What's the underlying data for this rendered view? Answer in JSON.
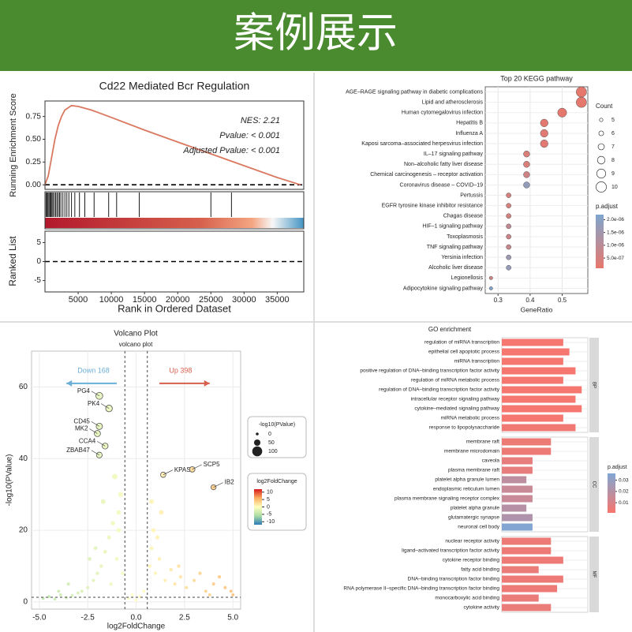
{
  "header": {
    "title": "案例展示"
  },
  "chart_data": [
    {
      "type": "line",
      "title": "Cd22 Mediated Bcr Regulation",
      "ylabel": "Running Enrichment Score",
      "xlabel": "Rank in Ordered Dataset",
      "annotations": [
        "NES: 2.21",
        "Pvalue: < 0.001",
        "Adjusted Pvalue: < 0.001"
      ],
      "x": [
        0,
        500,
        1000,
        1500,
        2000,
        2500,
        3000,
        4000,
        5000,
        7000,
        10000,
        15000,
        20000,
        25000,
        30000,
        35000,
        38500
      ],
      "y": [
        0,
        0.1,
        0.3,
        0.5,
        0.65,
        0.75,
        0.82,
        0.87,
        0.86,
        0.82,
        0.74,
        0.6,
        0.47,
        0.34,
        0.21,
        0.08,
        0
      ],
      "color": "#d9785f",
      "xlim": [
        0,
        39000
      ],
      "xticks": [
        5000,
        10000,
        15000,
        20000,
        25000,
        30000,
        35000
      ],
      "ylim": [
        -0.05,
        0.92
      ],
      "yticks": [
        {
          "value": 0,
          "label": "0.00"
        },
        0.25,
        {
          "value": 0.5,
          "label": "0.50"
        },
        0.75
      ],
      "hits": [
        150,
        300,
        450,
        600,
        750,
        900,
        1050,
        1200,
        1400,
        1600,
        1800,
        2000,
        2200,
        2400,
        2700,
        3000,
        3300,
        3600,
        4000,
        4500,
        5200,
        6000,
        7400,
        9600,
        10800,
        14200,
        25000,
        28100
      ],
      "ranked_ylabel": "Ranked List",
      "ranked_ylim": [
        -8,
        8
      ],
      "ranked_yticks": [
        5,
        0,
        -5
      ]
    },
    {
      "type": "scatter",
      "title": "Top 20 KEGG pathway",
      "xlabel": "GeneRatio",
      "categories": [
        "AGE–RAGE signaling pathway in diabetic complications",
        "Lipid and atherosclerosis",
        "Human cytomegalovirus infection",
        "Hepatitis B",
        "Influenza A",
        "Kaposi sarcoma–associated herpesvirus infection",
        "IL–17 signaling pathway",
        "Non–alcoholic fatty liver disease",
        "Chemical carcinogenesis – receptor activation",
        "Coronavirus disease – COVID–19",
        "Pertussis",
        "EGFR tyrosine kinase inhibitor resistance",
        "Chagas disease",
        "HIF–1 signaling pathway",
        "Toxoplasmosis",
        "TNF signaling pathway",
        "Yersinia infection",
        "Alcoholic liver disease",
        "Legionellosis",
        "Adipocytokine signaling pathway"
      ],
      "gene_ratio": [
        0.56,
        0.56,
        0.5,
        0.444,
        0.444,
        0.444,
        0.389,
        0.389,
        0.389,
        0.389,
        0.333,
        0.333,
        0.333,
        0.333,
        0.333,
        0.333,
        0.333,
        0.333,
        0.278,
        0.278
      ],
      "count": [
        10,
        10,
        9,
        8,
        8,
        8,
        7,
        7,
        7,
        7,
        6,
        6,
        6,
        6,
        6,
        6,
        6,
        6,
        5,
        5
      ],
      "p_adjust": [
        1.5e-07,
        1.5e-07,
        1.6e-07,
        2e-07,
        2.5e-07,
        2.5e-07,
        4e-07,
        4e-07,
        6e-07,
        1.8e-06,
        5e-07,
        5e-07,
        5e-07,
        9e-07,
        7e-07,
        8e-07,
        1.6e-06,
        1.7e-06,
        6e-07,
        2.1e-06
      ],
      "xlim": [
        0.26,
        0.58
      ],
      "xticks": [
        0.3,
        0.4,
        0.5
      ],
      "grid": true,
      "size_title": "Count",
      "size_ticks": [
        5,
        6,
        7,
        8,
        9,
        10
      ],
      "color_title": "p.adjust",
      "colorbar_colors": [
        "#e8776b",
        "#7ea6cf"
      ],
      "colorbar_lim": [
        1e-07,
        2.2e-06
      ],
      "colorbar_ticks": [
        {
          "value": 2e-06,
          "label": "2.0e-06"
        },
        {
          "value": 1.5e-06,
          "label": "1.5e-06"
        },
        {
          "value": 1e-06,
          "label": "1.0e-06"
        },
        {
          "value": 5e-07,
          "label": "5.0e-07"
        }
      ]
    },
    {
      "type": "scatter",
      "title": "Volcano Plot",
      "subtitle": "volcano plot",
      "xlabel": "log2FoldChange",
      "ylabel": "-log10(PValue)",
      "annotations": [
        {
          "text": "Down 168",
          "color": "#6baed6"
        },
        {
          "text": "Up 398",
          "color": "#d6604d"
        }
      ],
      "x": [
        -4.8,
        -4.5,
        -4.2,
        -3.9,
        -3.6,
        -3.3,
        -3.0,
        -2.8,
        -2.5,
        -2.2,
        -2.0,
        -1.8,
        -1.6,
        -1.4,
        -1.2,
        -1.0,
        -0.9,
        -0.8,
        -0.7,
        -1.3,
        -2.4,
        -2.1,
        -1.7,
        -1.1,
        -0.9,
        -3.5,
        -4.0,
        -1.9,
        -1.4,
        -1.9,
        -2.0,
        -1.6,
        -1.9,
        -0.4,
        -0.2,
        0,
        0.2,
        0.4,
        0.7,
        0.8,
        0.9,
        1.0,
        1.2,
        1.5,
        1.8,
        2.0,
        2.3,
        2.6,
        3.0,
        3.3,
        3.6,
        4.0,
        4.3,
        4.6,
        4.9,
        1.1,
        1.3,
        0.8,
        2.2,
        3.8,
        5.0,
        1.4,
        2.9,
        4.0
      ],
      "y": [
        1,
        1.5,
        0.8,
        2,
        1.2,
        1.8,
        2.5,
        3,
        4,
        6,
        8,
        10,
        14,
        18,
        22,
        12,
        25,
        30,
        8,
        5,
        12,
        15,
        28,
        35,
        20,
        5,
        3,
        57.5,
        54,
        49,
        47,
        43.5,
        41,
        1,
        2,
        0.5,
        1.5,
        3,
        10,
        15,
        20,
        8,
        12,
        6,
        9,
        5,
        7,
        4,
        6,
        8,
        3,
        5,
        7,
        4,
        3,
        18,
        25,
        28,
        10,
        2,
        2,
        35.5,
        37,
        32
      ],
      "point_labels": [
        null,
        null,
        null,
        null,
        null,
        null,
        null,
        null,
        null,
        null,
        null,
        null,
        null,
        null,
        null,
        null,
        null,
        null,
        null,
        null,
        null,
        null,
        null,
        null,
        null,
        null,
        null,
        "PG4",
        "PK4",
        "CD45",
        "MK2",
        "CCA4",
        "ZBAB47",
        null,
        null,
        null,
        null,
        null,
        null,
        null,
        null,
        null,
        null,
        null,
        null,
        null,
        null,
        null,
        null,
        null,
        null,
        null,
        null,
        null,
        null,
        null,
        null,
        null,
        null,
        null,
        null,
        "KPAS",
        "SCP5",
        "IB2"
      ],
      "xlim": [
        -5.4,
        5.4
      ],
      "xticks": [
        {
          "value": -5,
          "label": "-5.0"
        },
        -2.5,
        {
          "value": 0,
          "label": "0.0"
        },
        2.5,
        {
          "value": 5,
          "label": "5.0"
        }
      ],
      "ylim": [
        -2,
        70
      ],
      "yticks": [
        0,
        20,
        40,
        60
      ],
      "grid": true,
      "vlines": [
        -0.58,
        0.58
      ],
      "hline": 1.3,
      "size_title": "-log10(PValue)",
      "size_ticks": [
        0,
        50,
        100
      ],
      "color_title": "log2FoldChange",
      "color_scale": [
        "#2c7bb6",
        "#abdda4",
        "#ffffbf",
        "#fdae61",
        "#d7191c"
      ],
      "colorbar_lim": [
        -12,
        12
      ],
      "colorbar_ticks": [
        10,
        5,
        0,
        -5,
        -10
      ]
    },
    {
      "type": "bar",
      "orientation": "horizontal",
      "title": "GO enrichment",
      "xlim": [
        0,
        7
      ],
      "color_title": "p.adjust",
      "colorbar_colors": [
        "#f8766d",
        "#7fa7d4"
      ],
      "colorbar_lim": [
        0.001,
        0.036
      ],
      "colorbar_ticks": [
        0.03,
        0.02,
        0.01
      ],
      "groups": [
        {
          "name": "BP",
          "categories": [
            "regulation of miRNA transcription",
            "epithelial cell apoptotic process",
            "miRNA transcription",
            "positive regulation of DNA–binding transcription factor activity",
            "regulation of miRNA metabolic process",
            "regulation of DNA–binding transcription factor activity",
            "intracellular receptor signaling pathway",
            "cytokine–mediated signaling pathway",
            "miRNA metabolic process",
            "response to lipopolysaccharide"
          ],
          "values": [
            5,
            5.5,
            5,
            6,
            5,
            6.5,
            6,
            6.5,
            5,
            6
          ],
          "p_adjust": [
            0.002,
            0.002,
            0.002,
            0.002,
            0.002,
            0.002,
            0.002,
            0.002,
            0.002,
            0.003
          ]
        },
        {
          "name": "CC",
          "categories": [
            "membrane raft",
            "membrane microdomain",
            "caveola",
            "plasma membrane raft",
            "platelet alpha granule lumen",
            "endoplasmic reticulum lumen",
            "plasma membrane signaling receptor complex",
            "platelet alpha granule",
            "glutamatergic synapse",
            "neuronal cell body"
          ],
          "values": [
            4,
            4,
            2.5,
            2.5,
            2,
            2.5,
            2.5,
            2,
            2.5,
            2.5
          ],
          "p_adjust": [
            0.004,
            0.004,
            0.006,
            0.006,
            0.018,
            0.015,
            0.015,
            0.02,
            0.022,
            0.035
          ]
        },
        {
          "name": "MF",
          "categories": [
            "nuclear receptor activity",
            "ligand–activated transcription factor activity",
            "cytokine receptor binding",
            "fatty acid binding",
            "DNA–binding transcription factor binding",
            "RNA polymerase II–specific DNA–binding transcription factor binding",
            "monocarboxylic acid binding",
            "cytokine activity"
          ],
          "values": [
            4,
            4,
            5,
            3,
            5,
            4.5,
            3,
            4
          ],
          "p_adjust": [
            0.004,
            0.004,
            0.004,
            0.005,
            0.004,
            0.004,
            0.005,
            0.005
          ]
        }
      ]
    }
  ]
}
